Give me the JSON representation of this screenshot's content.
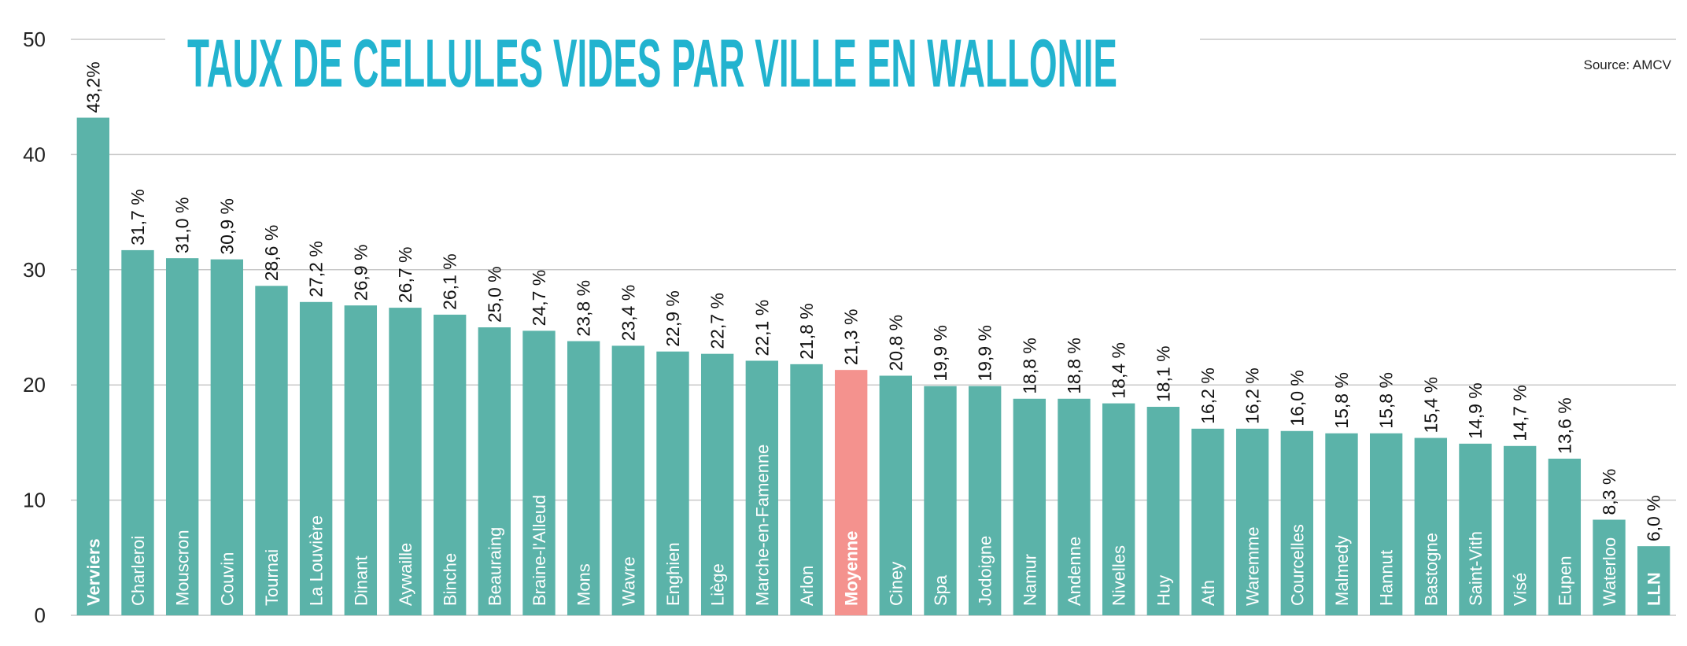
{
  "chart_data": {
    "type": "bar",
    "title": "TAUX DE CELLULES VIDES PAR VILLE EN WALLONIE",
    "source": "Source: AMCV",
    "ylim": [
      0,
      50
    ],
    "yticks": [
      0,
      10,
      20,
      30,
      40,
      50
    ],
    "grid": true,
    "categories": [
      "Verviers",
      "Charleroi",
      "Mouscron",
      "Couvin",
      "Tournai",
      "La Louvière",
      "Dinant",
      "Aywaille",
      "Binche",
      "Beauraing",
      "Braine-l'Alleud",
      "Mons",
      "Wavre",
      "Enghien",
      "Liège",
      "Marche-en-Famenne",
      "Arlon",
      "Moyenne",
      "Ciney",
      "Spa",
      "Jodoigne",
      "Namur",
      "Andenne",
      "Nivelles",
      "Huy",
      "Ath",
      "Waremme",
      "Courcelles",
      "Malmedy",
      "Hannut",
      "Bastogne",
      "Saint-Vith",
      "Visé",
      "Eupen",
      "Waterloo",
      "LLN"
    ],
    "values": [
      43.2,
      31.7,
      31.0,
      30.9,
      28.6,
      27.2,
      26.9,
      26.7,
      26.1,
      25.0,
      24.7,
      23.8,
      23.4,
      22.9,
      22.7,
      22.1,
      21.8,
      21.3,
      20.8,
      19.9,
      19.9,
      18.8,
      18.8,
      18.4,
      18.1,
      16.2,
      16.2,
      16.0,
      15.8,
      15.8,
      15.4,
      14.9,
      14.7,
      13.6,
      8.3,
      6.0
    ],
    "value_labels": [
      "43,2%",
      "31,7 %",
      "31,0 %",
      "30,9 %",
      "28,6 %",
      "27,2 %",
      "26,9 %",
      "26,7 %",
      "26,1 %",
      "25,0 %",
      "24,7 %",
      "23,8 %",
      "23,4 %",
      "22,9 %",
      "22,7 %",
      "22,1 %",
      "21,8 %",
      "21,3 %",
      "20,8 %",
      "19,9 %",
      "19,9 %",
      "18,8 %",
      "18,8 %",
      "18,4 %",
      "18,1 %",
      "16,2 %",
      "16,2 %",
      "16,0 %",
      "15,8 %",
      "15,8 %",
      "15,4 %",
      "14,9 %",
      "14,7 %",
      "13,6 %",
      "8,3 %",
      "6,0 %"
    ],
    "bold_categories": [
      "Verviers",
      "Moyenne",
      "LLN"
    ],
    "highlight_category": "Moyenne",
    "colors": {
      "bar": "#5bb3a9",
      "highlight": "#f4928e",
      "title": "#22b3cf"
    }
  }
}
